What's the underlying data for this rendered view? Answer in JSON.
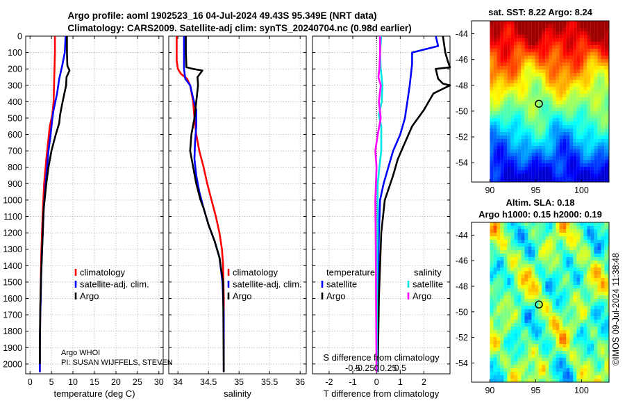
{
  "title_line1": "Argo profile: aoml 1902523_16 04-Jul-2024 49.43S 95.349E (NRT data)",
  "title_line2": "Climatology: CARS2009. Satellite-adj clim: synTS_20240704.nc (0.98d earlier)",
  "info_line1": "Argo WHOI",
  "info_line2": "PI: SUSAN WIJFFELS, STEVEN",
  "copyright": "©IMOS 09-Jul-2024 11:38:48",
  "colors": {
    "climatology": "#ff0000",
    "satellite": "#0000ff",
    "argo": "#000000",
    "sat_s": "#00e5e5",
    "argo_s": "#ff00ff"
  },
  "chart_data": [
    {
      "type": "line",
      "id": "temperature",
      "xlabel": "temperature (deg C)",
      "ylabel": "",
      "xlim": [
        -1,
        31
      ],
      "ylim": [
        2060,
        0
      ],
      "xticks": [
        0,
        5,
        10,
        15,
        20,
        25,
        30
      ],
      "yticks": [
        0,
        100,
        200,
        300,
        400,
        500,
        600,
        700,
        800,
        900,
        1000,
        1100,
        1200,
        1300,
        1400,
        1500,
        1600,
        1700,
        1800,
        1900,
        2000
      ],
      "legend": [
        "climatology",
        "satellite-adj. clim.",
        "Argo"
      ],
      "series": [
        {
          "name": "climatology",
          "color": "#ff0000",
          "x": [
            5.8,
            5.8,
            5.7,
            5.6,
            5.5,
            5.2,
            4.6,
            4.2,
            3.8,
            3.3,
            3.0,
            2.8,
            2.6,
            2.5,
            2.45,
            2.4,
            2.35,
            2.3,
            2.3,
            2.3,
            2.3
          ],
          "y": [
            0,
            100,
            200,
            300,
            400,
            480,
            550,
            650,
            750,
            900,
            1050,
            1200,
            1350,
            1500,
            1600,
            1700,
            1800,
            1900,
            1950,
            2000,
            2050
          ]
        },
        {
          "name": "satellite-adj. clim.",
          "color": "#0000ff",
          "x": [
            8.3,
            8.2,
            8.1,
            7.5,
            6.8,
            6.3,
            5.5,
            5.2,
            4.8,
            4.3,
            3.8,
            3.2,
            2.9,
            2.6,
            2.5,
            2.4,
            2.35,
            2.3,
            2.3,
            2.3
          ],
          "y": [
            0,
            50,
            100,
            180,
            260,
            350,
            450,
            500,
            600,
            700,
            850,
            1050,
            1250,
            1450,
            1600,
            1700,
            1800,
            1900,
            2000,
            2050
          ]
        },
        {
          "name": "Argo",
          "color": "#000000",
          "x": [
            8.6,
            8.6,
            8.7,
            9.2,
            8.5,
            8.4,
            7.6,
            7.0,
            6.8,
            6.0,
            5.0,
            4.3,
            3.8,
            3.2,
            2.9,
            2.6,
            2.4,
            2.3,
            2.3
          ],
          "y": [
            0,
            100,
            180,
            210,
            250,
            300,
            400,
            480,
            530,
            600,
            700,
            800,
            900,
            1050,
            1250,
            1450,
            1650,
            1850,
            2000
          ]
        }
      ]
    },
    {
      "type": "line",
      "id": "salinity",
      "xlabel": "salinity",
      "ylabel": "",
      "xlim": [
        33.85,
        36.1
      ],
      "ylim": [
        2060,
        0
      ],
      "xticks": [
        34,
        34.5,
        35,
        35.5,
        36
      ],
      "xticklabels": [
        "34",
        "34.5",
        "35",
        "35.5",
        "36"
      ],
      "legend": [
        "climatology",
        "satellite-adj. clim.",
        "Argo"
      ],
      "series": [
        {
          "name": "climatology",
          "color": "#ff0000",
          "x": [
            33.98,
            33.98,
            33.98,
            34.0,
            34.05,
            34.15,
            34.2,
            34.25,
            34.27,
            34.3,
            34.35,
            34.42,
            34.48,
            34.55,
            34.62,
            34.68,
            34.72,
            34.74,
            34.75,
            34.75
          ],
          "y": [
            0,
            50,
            150,
            200,
            230,
            260,
            300,
            400,
            500,
            600,
            700,
            800,
            900,
            1000,
            1100,
            1200,
            1300,
            1400,
            1600,
            2050
          ]
        },
        {
          "name": "satellite-adj. clim.",
          "color": "#0000ff",
          "x": [
            34.1,
            34.1,
            34.1,
            34.12,
            34.2,
            34.25,
            34.3,
            34.3,
            34.28,
            34.27,
            34.3,
            34.35,
            34.42,
            34.5,
            34.6,
            34.68,
            34.73,
            34.75,
            34.75
          ],
          "y": [
            0,
            100,
            200,
            260,
            300,
            380,
            450,
            550,
            650,
            750,
            850,
            950,
            1050,
            1150,
            1250,
            1350,
            1500,
            1700,
            2050
          ]
        },
        {
          "name": "Argo",
          "color": "#000000",
          "x": [
            34.13,
            34.13,
            34.14,
            34.25,
            34.4,
            34.32,
            34.33,
            34.3,
            34.27,
            34.22,
            34.2,
            34.25,
            34.3,
            34.37,
            34.42,
            34.5,
            34.6,
            34.68,
            34.74,
            34.75
          ],
          "y": [
            0,
            100,
            190,
            200,
            210,
            250,
            300,
            400,
            500,
            600,
            700,
            800,
            900,
            1000,
            1050,
            1150,
            1250,
            1350,
            1500,
            2050
          ]
        }
      ]
    },
    {
      "type": "line",
      "id": "difference",
      "xlabel": "T difference from climatology",
      "xlabel_top": "S difference from climatology",
      "xlim": [
        -2.7,
        3.1
      ],
      "ylim": [
        2060,
        0
      ],
      "xticks": [
        -2,
        -1,
        0,
        1,
        2
      ],
      "xticklabels": [
        "-2",
        "-1",
        "0",
        "1",
        "2"
      ],
      "sticks": [
        -0.5,
        -0.25,
        0,
        0.25,
        0.5
      ],
      "sticklabels": [
        "-0.5",
        "-0.25",
        "0",
        "0.25",
        "0.5"
      ],
      "legend_titles": [
        "temperature",
        "salinity"
      ],
      "legend": [
        "satellite",
        "Argo",
        "satellite",
        "Argo"
      ],
      "series": [
        {
          "name": "T satellite",
          "color": "#0000ff",
          "x": [
            2.5,
            2.6,
            1.5,
            1.5,
            1.4,
            1.3,
            1.25,
            1.2,
            1.0,
            0.7,
            0.5,
            0.3,
            0.15,
            0.1,
            0.08,
            0.05,
            0.05,
            0.05
          ],
          "y": [
            0,
            60,
            100,
            170,
            300,
            400,
            450,
            500,
            600,
            700,
            800,
            900,
            1000,
            1200,
            1400,
            1600,
            1800,
            2050
          ]
        },
        {
          "name": "T Argo",
          "color": "#000000",
          "x": [
            2.8,
            2.9,
            3.0,
            3.1,
            2.5,
            2.6,
            2.8,
            3.1,
            2.4,
            2.0,
            1.5,
            1.2,
            0.9,
            0.7,
            0.35,
            0.2,
            0.15,
            0.1,
            0.08,
            0.05
          ],
          "y": [
            0,
            100,
            150,
            190,
            200,
            260,
            290,
            300,
            350,
            450,
            550,
            650,
            750,
            850,
            1000,
            1200,
            1400,
            1600,
            1800,
            2050
          ]
        },
        {
          "name": "S satellite",
          "color": "#00e5e5",
          "x": [
            0.2,
            0.15,
            0.18,
            0.25,
            0.22,
            0.1,
            0.2,
            0.2,
            0.12,
            0.05,
            0.05,
            0.05,
            0.03,
            0.02,
            0.02,
            0.02
          ],
          "y": [
            0,
            100,
            200,
            300,
            400,
            480,
            550,
            700,
            800,
            900,
            1000,
            1200,
            1400,
            1600,
            1800,
            2050
          ]
        },
        {
          "name": "S Argo",
          "color": "#ff00ff",
          "x": [
            0.15,
            0.15,
            0.12,
            0.08,
            0.18,
            0.1,
            0.18,
            0.05,
            -0.05,
            0.0,
            -0.05,
            -0.03,
            -0.02,
            0.0
          ],
          "y": [
            0,
            100,
            200,
            250,
            300,
            400,
            500,
            600,
            700,
            800,
            1000,
            1300,
            1600,
            2050
          ]
        }
      ]
    },
    {
      "type": "heatmap",
      "id": "sst_map",
      "title": "sat. SST: 8.22 Argo: 8.24",
      "xlim": [
        88,
        103
      ],
      "ylim": [
        -55.5,
        -43
      ],
      "xticks": [
        90,
        95,
        100
      ],
      "yticks": [
        -44,
        -46,
        -48,
        -50,
        -52,
        -54
      ],
      "marker": {
        "x": 95.35,
        "y": -49.43
      }
    },
    {
      "type": "heatmap",
      "id": "sla_map",
      "title_line1": "Altim. SLA: 0.18",
      "title_line2": "Argo h1000: 0.15 h2000: 0.19",
      "xlim": [
        88,
        103
      ],
      "ylim": [
        -55.5,
        -43
      ],
      "xticks": [
        90,
        95,
        100
      ],
      "yticks": [
        -44,
        -46,
        -48,
        -50,
        -52,
        -54
      ],
      "marker": {
        "x": 95.35,
        "y": -49.43
      }
    }
  ]
}
